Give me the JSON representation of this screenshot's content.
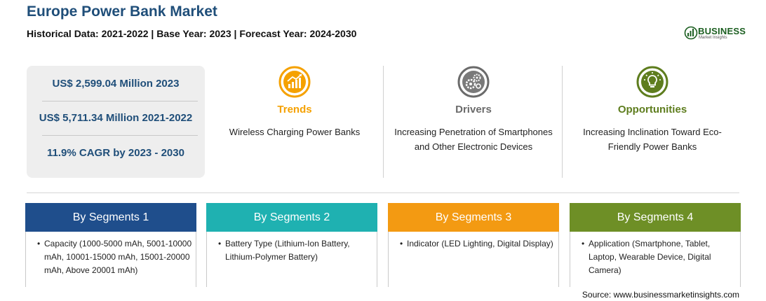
{
  "header": {
    "title": "Europe Power Bank Market",
    "subtitle": "Historical Data: 2021-2022 | Base Year: 2023 | Forecast Year: 2024-2030"
  },
  "logo": {
    "word": "BUSINESS",
    "sub": "Market Insights"
  },
  "stats": [
    "US$ 2,599.04 Million 2023",
    "US$ 5,711.34 Million 2021-2022",
    "11.9% CAGR by 2023 - 2030"
  ],
  "columns": [
    {
      "title": "Trends",
      "text": "Wireless Charging Power Banks",
      "icon": "trending-chart-icon",
      "color": "#f5a100"
    },
    {
      "title": "Drivers",
      "text": "Increasing Penetration of Smartphones and Other Electronic Devices",
      "icon": "gears-icon",
      "color": "#6b6b6b"
    },
    {
      "title": "Opportunities",
      "text": "Increasing Inclination Toward Eco-Friendly Power Banks",
      "icon": "lightbulb-icon",
      "color": "#5e7d1e"
    }
  ],
  "segments": [
    {
      "title": "By Segments 1",
      "text": "Capacity (1000-5000 mAh, 5001-10000 mAh, 10001-15000 mAh, 15001-20000 mAh, Above 20001 mAh)",
      "color": "#1f4e8c"
    },
    {
      "title": "By Segments 2",
      "text": "Battery Type (Lithium-Ion Battery, Lithium-Polymer Battery)",
      "color": "#1fb1b1"
    },
    {
      "title": "By Segments 3",
      "text": "Indicator (LED Lighting, Digital Display)",
      "color": "#f39a12"
    },
    {
      "title": "By Segments 4",
      "text": "Application (Smartphone, Tablet, Laptop, Wearable Device, Digital Camera)",
      "color": "#6e8f26"
    }
  ],
  "source": "Source: www.businessmarketinsights.com"
}
